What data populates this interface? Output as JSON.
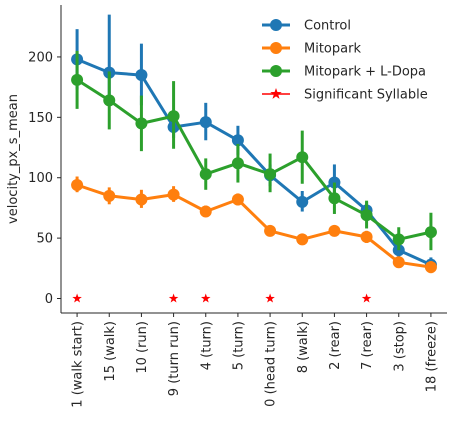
{
  "chart_data": {
    "type": "line",
    "ylabel": "velocity_px_s_mean",
    "xlabel": "",
    "categories": [
      "1 (walk start)",
      "15 (walk)",
      "10 (run)",
      "9 (turn run)",
      "4 (turn)",
      "5 (turn)",
      "0 (head turn)",
      "8 (walk)",
      "2 (rear)",
      "7 (rear)",
      "3 (stop)",
      "18 (freeze)"
    ],
    "ylim": [
      -12,
      243
    ],
    "yticks": [
      0,
      50,
      100,
      150,
      200
    ],
    "grid": false,
    "legend_position": "top-right",
    "series": [
      {
        "name": "Control",
        "color": "#1f77b4",
        "marker": "circle",
        "values": [
          198,
          187,
          185,
          142,
          146,
          131,
          102,
          80,
          96,
          73,
          40,
          28
        ],
        "err_low": [
          173,
          163,
          160,
          133,
          131,
          119,
          93,
          72,
          84,
          65,
          34,
          23
        ],
        "err_high": [
          223,
          235,
          211,
          151,
          162,
          143,
          111,
          89,
          111,
          80,
          46,
          34
        ]
      },
      {
        "name": "Mitopark",
        "color": "#ff7f0e",
        "marker": "circle",
        "values": [
          94,
          85,
          82,
          86,
          72,
          82,
          56,
          49,
          56,
          51,
          30,
          26
        ],
        "err_low": [
          88,
          78,
          75,
          80,
          68,
          77,
          52,
          45,
          52,
          46,
          26,
          21
        ],
        "err_high": [
          101,
          92,
          90,
          93,
          77,
          87,
          60,
          53,
          60,
          56,
          34,
          31
        ]
      },
      {
        "name": "Mitopark + L-Dopa",
        "color": "#2ca02c",
        "marker": "circle",
        "values": [
          181,
          164,
          145,
          151,
          103,
          112,
          103,
          117,
          83,
          69,
          49,
          55
        ],
        "err_low": [
          157,
          140,
          122,
          124,
          90,
          96,
          88,
          95,
          70,
          58,
          40,
          40
        ],
        "err_high": [
          205,
          188,
          168,
          180,
          116,
          128,
          120,
          139,
          96,
          81,
          59,
          71
        ]
      }
    ],
    "significant": {
      "name": "Significant Syllable",
      "color": "#ff0000",
      "marker": "star",
      "indices": [
        0,
        3,
        4,
        6,
        9
      ],
      "value": 0
    }
  }
}
